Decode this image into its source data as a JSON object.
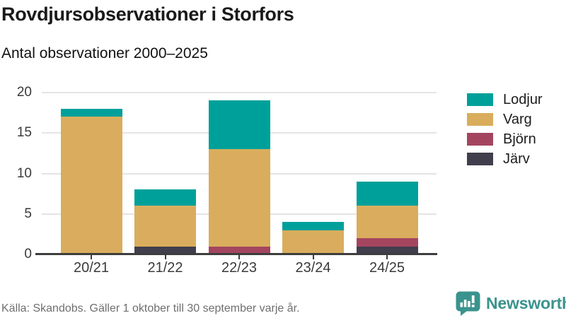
{
  "header": {
    "title": "Rovdjursobservationer i Storfors",
    "subtitle": "Antal observationer 2000–2025"
  },
  "chart_data": {
    "type": "bar",
    "stacked": true,
    "title": "Rovdjursobservationer i Storfors",
    "subtitle": "Antal observationer 2000–2025",
    "categories": [
      "20/21",
      "21/22",
      "22/23",
      "23/24",
      "24/25"
    ],
    "series": [
      {
        "name": "Järv",
        "color": "#413e4d",
        "values": [
          0,
          1,
          0,
          0,
          1
        ]
      },
      {
        "name": "Björn",
        "color": "#a44560",
        "values": [
          0,
          0,
          1,
          0,
          1
        ]
      },
      {
        "name": "Varg",
        "color": "#d9ad5d",
        "values": [
          17,
          5,
          12,
          3,
          4
        ]
      },
      {
        "name": "Lodjur",
        "color": "#00a09a",
        "values": [
          1,
          2,
          6,
          1,
          3
        ]
      }
    ],
    "totals": [
      18,
      8,
      19,
      4,
      9
    ],
    "xlabel": "",
    "ylabel": "",
    "ylim": [
      0,
      20
    ],
    "yticks": [
      0,
      5,
      10,
      15,
      20
    ],
    "grid": true,
    "legend_position": "right",
    "legend_order": [
      "Lodjur",
      "Varg",
      "Björn",
      "Järv"
    ]
  },
  "footer": {
    "source": "Källa: Skandobs. Gäller 1 oktober till 30 september varje år.",
    "brand": "Newsworthy"
  },
  "colors": {
    "lodjur": "#00a09a",
    "varg": "#d9ad5d",
    "bjorn": "#a44560",
    "jarv": "#413e4d",
    "axis": "#3d3d3d",
    "grid": "#e4e4e4",
    "brand": "#3a938d"
  }
}
